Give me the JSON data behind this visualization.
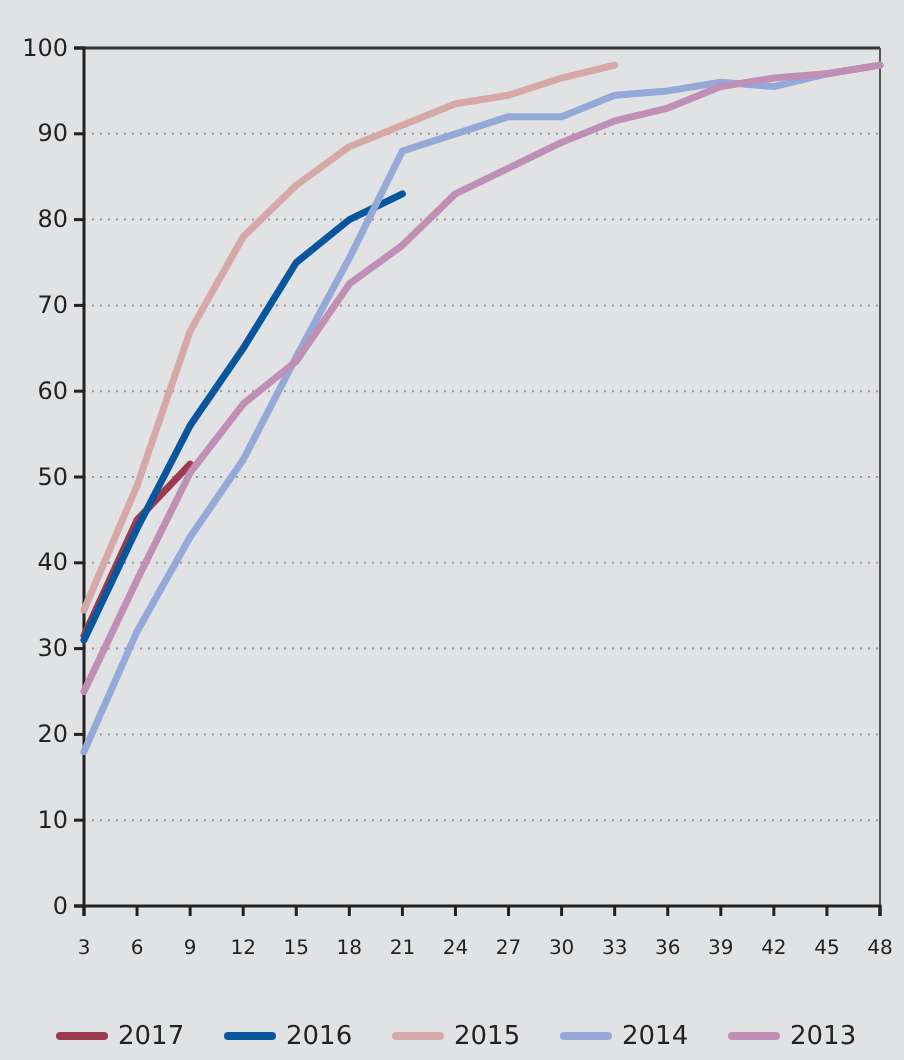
{
  "chart_data": {
    "type": "line",
    "x": [
      3,
      6,
      9,
      12,
      15,
      18,
      21,
      24,
      27,
      30,
      33,
      36,
      39,
      42,
      45,
      48
    ],
    "xlim": [
      3,
      48
    ],
    "xticks": [
      3,
      6,
      9,
      12,
      15,
      18,
      21,
      24,
      27,
      30,
      33,
      36,
      39,
      42,
      45,
      48
    ],
    "ylim": [
      0,
      100
    ],
    "yticks": [
      0,
      10,
      20,
      30,
      40,
      50,
      60,
      70,
      80,
      90,
      100
    ],
    "grid": "y",
    "legend": "bottom",
    "line_style": "solid",
    "marker": "none",
    "series": [
      {
        "name": "2017",
        "color": "#9e3a4f",
        "values": [
          31.5,
          45,
          51.5,
          null,
          null,
          null,
          null,
          null,
          null,
          null,
          null,
          null,
          null,
          null,
          null,
          null
        ]
      },
      {
        "name": "2016",
        "color": "#0a569c",
        "values": [
          31,
          44,
          56,
          65,
          75,
          80,
          83,
          null,
          null,
          null,
          null,
          null,
          null,
          null,
          null,
          null
        ]
      },
      {
        "name": "2015",
        "color": "#d6a9a8",
        "values": [
          34.5,
          49,
          67,
          78,
          84,
          88.5,
          91,
          93.5,
          94.5,
          96.5,
          98,
          null,
          null,
          null,
          null,
          null
        ]
      },
      {
        "name": "2014",
        "color": "#94a9d8",
        "values": [
          18,
          32,
          43,
          52,
          64,
          75.5,
          88,
          90,
          92,
          92,
          94.5,
          95,
          96,
          95.5,
          97,
          98
        ]
      },
      {
        "name": "2013",
        "color": "#bf8fb5",
        "values": [
          25,
          38,
          50.5,
          58.5,
          63.5,
          72.5,
          77,
          83,
          86,
          89,
          91.5,
          93,
          95.5,
          96.5,
          97,
          98
        ]
      }
    ]
  }
}
